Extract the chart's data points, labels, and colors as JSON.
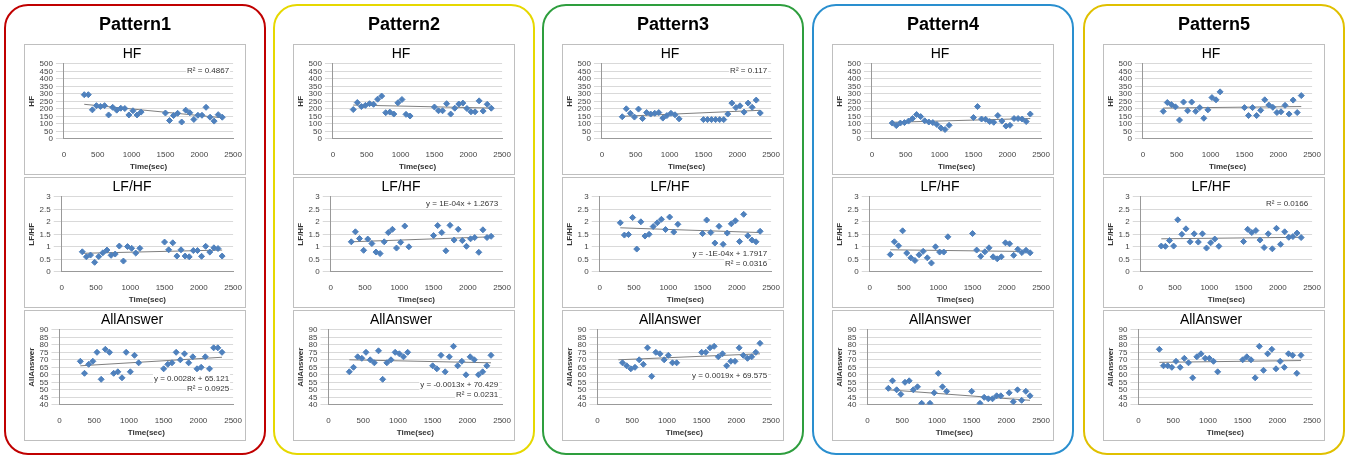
{
  "chart_data": [
    {
      "type": "scatter",
      "title": "Pattern1",
      "subtitle": "HF",
      "xlabel": "Time(sec)",
      "ylabel": "HF",
      "xlim": [
        0,
        2500
      ],
      "xticks": [
        0,
        500,
        1000,
        1500,
        2000,
        2500
      ],
      "ylim": [
        0,
        500
      ],
      "yticks": [
        0,
        50,
        100,
        150,
        200,
        250,
        300,
        350,
        400,
        450,
        500
      ],
      "grid": "y",
      "legend": false,
      "x": [
        300,
        360,
        420,
        480,
        540,
        600,
        660,
        720,
        780,
        840,
        900,
        960,
        1020,
        1080,
        1140,
        1500,
        1560,
        1620,
        1680,
        1740,
        1800,
        1860,
        1920,
        1980,
        2040,
        2100,
        2160,
        2220,
        2280,
        2340
      ],
      "annotations": [
        "R² = 0.4867"
      ],
      "series": [
        {
          "color": "#4f81bd",
          "marker": "diamond",
          "values": [
            294,
            294,
            193,
            221,
            216,
            221,
            159,
            210,
            191,
            204,
            202,
            159,
            187,
            159,
            178,
            172,
            122,
            155,
            170,
            112,
            191,
            174,
            129,
            157,
            157,
            210,
            144,
            118,
            161,
            144
          ]
        },
        {
          "type": "line",
          "color": "#7f7f7f",
          "x": [
            300,
            2340
          ],
          "values": [
            230,
            140
          ]
        }
      ]
    },
    {
      "type": "scatter",
      "title": "LF/HF",
      "xlabel": "Time(sec)",
      "ylabel": "LF/HF",
      "xlim": [
        0,
        2500
      ],
      "xticks": [
        0,
        500,
        1000,
        1500,
        2000,
        2500
      ],
      "ylim": [
        0,
        3
      ],
      "yticks": [
        0,
        0.5,
        1,
        1.5,
        2,
        2.5,
        3
      ],
      "grid": "y",
      "legend": false,
      "x": [
        300,
        360,
        420,
        480,
        540,
        600,
        660,
        720,
        780,
        840,
        900,
        960,
        1020,
        1080,
        1140,
        1500,
        1560,
        1620,
        1680,
        1740,
        1800,
        1860,
        1920,
        1980,
        2040,
        2100,
        2160,
        2220,
        2280,
        2340
      ],
      "series": [
        {
          "color": "#4f81bd",
          "marker": "diamond",
          "values": [
            0.8,
            0.6,
            0.67,
            0.38,
            0.61,
            0.76,
            0.87,
            0.66,
            0.71,
            1.03,
            0.43,
            1.01,
            0.94,
            0.75,
            0.94,
            1.19,
            0.88,
            1.16,
            0.63,
            0.88,
            0.63,
            0.6,
            0.85,
            0.85,
            0.62,
            1.02,
            0.79,
            0.96,
            0.93,
            0.63
          ]
        },
        {
          "type": "line",
          "color": "#7f7f7f",
          "x": [
            300,
            2340
          ],
          "values": [
            0.74,
            0.87
          ]
        }
      ]
    },
    {
      "type": "scatter",
      "title": "AllAnswer",
      "xlabel": "Time(sec)",
      "ylabel": "AllAnswer",
      "xlim": [
        0,
        2500
      ],
      "xticks": [
        0,
        500,
        1000,
        1500,
        2000,
        2500
      ],
      "ylim": [
        40,
        90
      ],
      "yticks": [
        40,
        45,
        50,
        55,
        60,
        65,
        70,
        75,
        80,
        85,
        90
      ],
      "grid": "y",
      "legend": false,
      "x": [
        300,
        360,
        420,
        480,
        540,
        600,
        660,
        720,
        780,
        840,
        900,
        960,
        1020,
        1080,
        1140,
        1500,
        1560,
        1620,
        1680,
        1740,
        1800,
        1860,
        1920,
        1980,
        2040,
        2100,
        2160,
        2220,
        2280,
        2340
      ],
      "annotations": [
        "y = 0.0028x + 65.121",
        "R² = 0.0925"
      ],
      "series": [
        {
          "color": "#4f81bd",
          "marker": "diamond",
          "values": [
            69,
            61,
            67,
            69,
            75,
            57,
            77,
            75,
            61,
            62,
            58,
            75,
            62,
            73,
            68,
            64,
            67,
            68,
            75,
            70,
            74,
            68,
            72,
            64,
            65,
            72,
            64,
            78,
            78,
            75
          ]
        },
        {
          "type": "line",
          "color": "#7f7f7f",
          "x": [
            300,
            2340
          ],
          "values": [
            66,
            71.7
          ]
        }
      ]
    },
    {
      "type": "scatter",
      "title": "Pattern2",
      "subtitle": "HF",
      "xlabel": "Time(sec)",
      "ylabel": "HF",
      "xlim": [
        0,
        2500
      ],
      "xticks": [
        0,
        500,
        1000,
        1500,
        2000,
        2500
      ],
      "ylim": [
        0,
        500
      ],
      "yticks": [
        0,
        50,
        100,
        150,
        200,
        250,
        300,
        350,
        400,
        450,
        500
      ],
      "grid": "y",
      "legend": false,
      "x": [
        300,
        360,
        420,
        480,
        540,
        600,
        660,
        720,
        780,
        840,
        900,
        960,
        1020,
        1080,
        1140,
        1500,
        1560,
        1620,
        1680,
        1740,
        1800,
        1860,
        1920,
        1980,
        2040,
        2100,
        2160,
        2220,
        2280,
        2340
      ],
      "series": [
        {
          "color": "#4f81bd",
          "marker": "diamond",
          "values": [
            195,
            242,
            215,
            223,
            234,
            230,
            264,
            285,
            174,
            178,
            165,
            240,
            262,
            163,
            152,
            212,
            187,
            187,
            234,
            165,
            204,
            232,
            238,
            202,
            180,
            180,
            253,
            185,
            230,
            204
          ]
        },
        {
          "type": "line",
          "color": "#7f7f7f",
          "x": [
            300,
            2340
          ],
          "values": [
            225,
            205
          ]
        }
      ]
    },
    {
      "type": "scatter",
      "title": "LF/HF",
      "xlabel": "Time(sec)",
      "ylabel": "LF/HF",
      "xlim": [
        0,
        2500
      ],
      "xticks": [
        0,
        500,
        1000,
        1500,
        2000,
        2500
      ],
      "ylim": [
        0,
        3
      ],
      "yticks": [
        0,
        0.5,
        1,
        1.5,
        2,
        2.5,
        3
      ],
      "grid": "y",
      "legend": false,
      "x": [
        300,
        360,
        420,
        480,
        540,
        600,
        660,
        720,
        780,
        840,
        900,
        960,
        1020,
        1080,
        1140,
        1500,
        1560,
        1620,
        1680,
        1740,
        1800,
        1860,
        1920,
        1980,
        2040,
        2100,
        2160,
        2220,
        2280,
        2340
      ],
      "annotations": [
        "y = 1E-04x + 1.2673"
      ],
      "series": [
        {
          "color": "#4f81bd",
          "marker": "diamond",
          "values": [
            1.2,
            1.6,
            1.33,
            0.86,
            1.31,
            1.13,
            0.79,
            0.73,
            1.2,
            1.57,
            1.7,
            0.95,
            1.18,
            1.83,
            1.0,
            1.45,
            1.85,
            1.57,
            0.84,
            1.86,
            1.27,
            1.7,
            1.25,
            1.02,
            1.32,
            1.37,
            0.78,
            1.68,
            1.37,
            1.42
          ]
        },
        {
          "type": "line",
          "color": "#7f7f7f",
          "x": [
            300,
            2340
          ],
          "values": [
            1.2,
            1.4
          ]
        }
      ]
    },
    {
      "type": "scatter",
      "title": "AllAnswer",
      "xlabel": "Time(sec)",
      "ylabel": "AllAnswer",
      "xlim": [
        0,
        2500
      ],
      "xticks": [
        0,
        500,
        1000,
        1500,
        2000,
        2500
      ],
      "ylim": [
        40,
        90
      ],
      "yticks": [
        40,
        45,
        50,
        55,
        60,
        65,
        70,
        75,
        80,
        85,
        90
      ],
      "grid": "y",
      "legend": false,
      "x": [
        300,
        360,
        420,
        480,
        540,
        600,
        660,
        720,
        780,
        840,
        900,
        960,
        1020,
        1080,
        1140,
        1500,
        1560,
        1620,
        1680,
        1740,
        1800,
        1860,
        1920,
        1980,
        2040,
        2100,
        2160,
        2220,
        2280,
        2340
      ],
      "annotations": [
        "y = -0.0013x + 70.429",
        "R² = 0.0231"
      ],
      "series": [
        {
          "color": "#4f81bd",
          "marker": "diamond",
          "values": [
            62,
            65,
            72,
            71,
            75,
            70,
            68,
            76,
            57,
            68,
            70,
            75,
            74,
            72,
            75,
            66,
            64,
            73,
            62,
            72,
            79,
            66,
            69,
            60,
            72,
            70,
            60,
            62,
            66,
            73
          ]
        },
        {
          "type": "line",
          "color": "#7f7f7f",
          "x": [
            300,
            2340
          ],
          "values": [
            70,
            68
          ]
        }
      ]
    },
    {
      "type": "scatter",
      "title": "Pattern3",
      "subtitle": "HF",
      "xlabel": "Time(sec)",
      "ylabel": "HF",
      "xlim": [
        0,
        2500
      ],
      "xticks": [
        0,
        500,
        1000,
        1500,
        2000,
        2500
      ],
      "ylim": [
        0,
        500
      ],
      "yticks": [
        0,
        50,
        100,
        150,
        200,
        250,
        300,
        350,
        400,
        450,
        500
      ],
      "grid": "y",
      "legend": false,
      "x": [
        300,
        360,
        420,
        480,
        540,
        600,
        660,
        720,
        780,
        840,
        900,
        960,
        1020,
        1080,
        1140,
        1500,
        1560,
        1620,
        1680,
        1740,
        1800,
        1860,
        1920,
        1980,
        2040,
        2100,
        2160,
        2220,
        2280,
        2340
      ],
      "annotations": [
        "R² = 0.117"
      ],
      "series": [
        {
          "color": "#4f81bd",
          "marker": "diamond",
          "values": [
            147,
            200,
            170,
            145,
            198,
            135,
            175,
            165,
            170,
            175,
            138,
            155,
            170,
            160,
            133,
            128,
            128,
            128,
            128,
            128,
            128,
            165,
            238,
            208,
            220,
            178,
            238,
            210,
            258,
            172
          ]
        },
        {
          "type": "line",
          "color": "#7f7f7f",
          "x": [
            300,
            2340
          ],
          "values": [
            150,
            190
          ]
        }
      ]
    },
    {
      "type": "scatter",
      "title": "LF/HF",
      "xlabel": "Time(sec)",
      "ylabel": "LF/HF",
      "xlim": [
        0,
        2500
      ],
      "xticks": [
        0,
        500,
        1000,
        1500,
        2000,
        2500
      ],
      "ylim": [
        0,
        3
      ],
      "yticks": [
        0,
        0.5,
        1,
        1.5,
        2,
        2.5,
        3
      ],
      "grid": "y",
      "legend": false,
      "x": [
        300,
        360,
        420,
        480,
        540,
        600,
        660,
        720,
        780,
        840,
        900,
        960,
        1020,
        1080,
        1140,
        1500,
        1560,
        1620,
        1680,
        1740,
        1800,
        1860,
        1920,
        1980,
        2040,
        2100,
        2160,
        2220,
        2280,
        2340
      ],
      "annotations": [
        "y = -1E-04x + 1.7917",
        "R² = 0.0316"
      ],
      "series": [
        {
          "color": "#4f81bd",
          "marker": "diamond",
          "values": [
            1.96,
            1.47,
            1.49,
            2.17,
            0.91,
            2.0,
            1.43,
            1.5,
            1.81,
            1.96,
            2.1,
            1.69,
            2.19,
            1.59,
            1.9,
            1.53,
            2.07,
            1.57,
            1.15,
            1.82,
            1.1,
            1.55,
            1.92,
            2.04,
            1.21,
            2.3,
            1.44,
            1.27,
            1.2,
            1.62
          ]
        },
        {
          "type": "line",
          "color": "#7f7f7f",
          "x": [
            300,
            2340
          ],
          "values": [
            1.76,
            1.57
          ]
        }
      ]
    },
    {
      "type": "scatter",
      "title": "AllAnswer",
      "xlabel": "Time(sec)",
      "ylabel": "AllAnswer",
      "xlim": [
        0,
        2500
      ],
      "xticks": [
        0,
        500,
        1000,
        1500,
        2000,
        2500
      ],
      "ylim": [
        40,
        90
      ],
      "yticks": [
        40,
        45,
        50,
        55,
        60,
        65,
        70,
        75,
        80,
        85,
        90
      ],
      "grid": "y",
      "legend": false,
      "annotations": [
        "y = 0.0019x + 69.575"
      ],
      "series": [
        {
          "color": "#4f81bd",
          "marker": "diamond",
          "x": [
            360,
            420,
            480,
            540,
            600,
            660,
            720,
            780,
            840,
            900,
            960,
            1020,
            1080,
            1140,
            1500,
            1560,
            1620,
            1680,
            1740,
            1800,
            1860,
            1920,
            1980,
            2040,
            2100,
            2160,
            2220,
            2280,
            2340
          ],
          "values": [
            68,
            66,
            64,
            65,
            70,
            67,
            78,
            59,
            75,
            74,
            70,
            73,
            68,
            68,
            75,
            75,
            78,
            79,
            72,
            74,
            66,
            69,
            69,
            78,
            73,
            71,
            72,
            75,
            81
          ]
        },
        {
          "type": "line",
          "color": "#7f7f7f",
          "x": [
            300,
            2340
          ],
          "values": [
            70,
            74
          ]
        }
      ]
    },
    {
      "type": "scatter",
      "title": "Pattern4",
      "subtitle": "HF",
      "xlabel": "Time(sec)",
      "ylabel": "HF",
      "xlim": [
        0,
        2500
      ],
      "xticks": [
        0,
        500,
        1000,
        1500,
        2000,
        2500
      ],
      "ylim": [
        0,
        500
      ],
      "yticks": [
        0,
        50,
        100,
        150,
        200,
        250,
        300,
        350,
        400,
        450,
        500
      ],
      "grid": "y",
      "legend": false,
      "x": [
        300,
        360,
        420,
        480,
        540,
        600,
        660,
        720,
        780,
        840,
        900,
        960,
        1020,
        1080,
        1140,
        1500,
        1560,
        1620,
        1680,
        1740,
        1800,
        1860,
        1920,
        1980,
        2040,
        2100,
        2160,
        2220,
        2280,
        2340
      ],
      "series": [
        {
          "color": "#4f81bd",
          "marker": "diamond",
          "values": [
            105,
            88,
            105,
            108,
            118,
            135,
            162,
            148,
            120,
            112,
            108,
            95,
            72,
            62,
            90,
            142,
            215,
            132,
            130,
            115,
            110,
            155,
            118,
            85,
            90,
            135,
            135,
            132,
            115,
            165
          ]
        },
        {
          "type": "line",
          "color": "#7f7f7f",
          "x": [
            300,
            2340
          ],
          "values": [
            110,
            135
          ]
        }
      ]
    },
    {
      "type": "scatter",
      "title": "LF/HF",
      "xlabel": "Time(sec)",
      "ylabel": "LF/HF",
      "xlim": [
        0,
        2500
      ],
      "xticks": [
        0,
        500,
        1000,
        1500,
        2000,
        2500
      ],
      "ylim": [
        0,
        3
      ],
      "yticks": [
        0,
        0.5,
        1,
        1.5,
        2,
        2.5,
        3
      ],
      "grid": "y",
      "legend": false,
      "x": [
        300,
        360,
        420,
        480,
        540,
        600,
        660,
        720,
        780,
        840,
        900,
        960,
        1020,
        1080,
        1140,
        1500,
        1560,
        1620,
        1680,
        1740,
        1800,
        1860,
        1920,
        1980,
        2040,
        2100,
        2160,
        2220,
        2280,
        2340
      ],
      "series": [
        {
          "color": "#4f81bd",
          "marker": "diamond",
          "values": [
            0.69,
            1.2,
            1.04,
            1.64,
            0.75,
            0.56,
            0.45,
            0.68,
            0.82,
            0.56,
            0.35,
            1.0,
            0.79,
            0.79,
            1.4,
            1.53,
            0.87,
            0.62,
            0.8,
            0.96,
            0.6,
            0.52,
            0.6,
            1.16,
            1.12,
            0.66,
            0.9,
            0.77,
            0.86,
            0.76
          ]
        },
        {
          "type": "line",
          "color": "#7f7f7f",
          "x": [
            300,
            2340
          ],
          "values": [
            0.88,
            0.81
          ]
        }
      ]
    },
    {
      "type": "scatter",
      "title": "AllAnswer",
      "xlabel": "Time(sec)",
      "ylabel": "AllAnswer",
      "xlim": [
        0,
        2500
      ],
      "xticks": [
        0,
        500,
        1000,
        1500,
        2000,
        2500
      ],
      "ylim": [
        40,
        90
      ],
      "yticks": [
        40,
        45,
        50,
        55,
        60,
        65,
        70,
        75,
        80,
        85,
        90
      ],
      "grid": "y",
      "legend": false,
      "series": [
        {
          "color": "#4f81bd",
          "marker": "diamond",
          "x": [
            300,
            360,
            420,
            480,
            540,
            600,
            660,
            720,
            780,
            900,
            960,
            1020,
            1080,
            1140,
            1500,
            1620,
            1680,
            1740,
            1800,
            1860,
            1920,
            2040,
            2100,
            2160,
            2220,
            2280,
            2340
          ],
          "values": [
            51,
            56,
            50,
            47,
            55,
            56,
            50,
            52,
            41,
            41,
            48,
            61,
            52,
            49,
            49,
            41,
            45,
            44,
            44,
            46,
            46,
            48,
            42,
            50,
            43,
            49,
            46
          ]
        },
        {
          "type": "line",
          "color": "#7f7f7f",
          "x": [
            300,
            2340
          ],
          "values": [
            50,
            43
          ]
        }
      ]
    },
    {
      "type": "scatter",
      "title": "Pattern5",
      "subtitle": "HF",
      "xlabel": "Time(sec)",
      "ylabel": "HF",
      "xlim": [
        0,
        2500
      ],
      "xticks": [
        0,
        500,
        1000,
        1500,
        2000,
        2500
      ],
      "ylim": [
        0,
        500
      ],
      "yticks": [
        0,
        50,
        100,
        150,
        200,
        250,
        300,
        350,
        400,
        450,
        500
      ],
      "grid": "y",
      "legend": false,
      "x": [
        300,
        360,
        420,
        480,
        540,
        600,
        660,
        720,
        780,
        840,
        900,
        960,
        1020,
        1080,
        1140,
        1500,
        1560,
        1620,
        1680,
        1740,
        1800,
        1860,
        1920,
        1980,
        2040,
        2100,
        2160,
        2220,
        2280,
        2340
      ],
      "series": [
        {
          "color": "#4f81bd",
          "marker": "diamond",
          "values": [
            183,
            242,
            228,
            213,
            125,
            245,
            187,
            245,
            183,
            208,
            137,
            193,
            275,
            260,
            313,
            208,
            155,
            208,
            155,
            190,
            260,
            225,
            210,
            175,
            180,
            223,
            165,
            258,
            175,
            288
          ]
        },
        {
          "type": "line",
          "color": "#7f7f7f",
          "x": [
            300,
            2340
          ],
          "values": [
            205,
            215
          ]
        }
      ]
    },
    {
      "type": "scatter",
      "title": "LF/HF",
      "xlabel": "Time(sec)",
      "ylabel": "LF/HF",
      "xlim": [
        0,
        2500
      ],
      "xticks": [
        0,
        500,
        1000,
        1500,
        2000,
        2500
      ],
      "ylim": [
        0,
        3
      ],
      "yticks": [
        0,
        0.5,
        1,
        1.5,
        2,
        2.5,
        3
      ],
      "grid": "y",
      "legend": false,
      "x": [
        300,
        360,
        420,
        480,
        540,
        600,
        660,
        720,
        780,
        840,
        900,
        960,
        1020,
        1080,
        1140,
        1500,
        1560,
        1620,
        1680,
        1740,
        1800,
        1860,
        1920,
        1980,
        2040,
        2100,
        2160,
        2220,
        2280,
        2340
      ],
      "annotations": [
        "R² = 0.0166"
      ],
      "series": [
        {
          "color": "#4f81bd",
          "marker": "diamond",
          "values": [
            1.03,
            1.02,
            1.25,
            1.03,
            2.08,
            1.5,
            1.72,
            1.2,
            1.52,
            1.19,
            1.52,
            0.95,
            1.16,
            1.31,
            1.02,
            1.21,
            1.7,
            1.57,
            1.65,
            1.27,
            0.97,
            1.52,
            0.92,
            1.74,
            1.1,
            1.6,
            1.38,
            1.41,
            1.55,
            1.37
          ]
        },
        {
          "type": "line",
          "color": "#7f7f7f",
          "x": [
            300,
            2340
          ],
          "values": [
            1.32,
            1.38
          ]
        }
      ]
    },
    {
      "type": "scatter",
      "title": "AllAnswer",
      "xlabel": "Time(sec)",
      "ylabel": "AllAnswer",
      "xlim": [
        0,
        2500
      ],
      "xticks": [
        0,
        500,
        1000,
        1500,
        2000,
        2500
      ],
      "ylim": [
        40,
        90
      ],
      "yticks": [
        40,
        45,
        50,
        55,
        60,
        65,
        70,
        75,
        80,
        85,
        90
      ],
      "grid": "y",
      "legend": false,
      "x": [
        300,
        360,
        420,
        480,
        540,
        600,
        660,
        720,
        780,
        840,
        900,
        960,
        1020,
        1080,
        1140,
        1500,
        1560,
        1620,
        1680,
        1740,
        1800,
        1860,
        1920,
        1980,
        2040,
        2100,
        2160,
        2220,
        2280,
        2340
      ],
      "series": [
        {
          "color": "#4f81bd",
          "marker": "diamond",
          "values": [
            77,
            66,
            66,
            65,
            69,
            65,
            71,
            68,
            58,
            72,
            74,
            71,
            71,
            69,
            62,
            70,
            72,
            70,
            58,
            79,
            63,
            74,
            77,
            64,
            69,
            65,
            74,
            73,
            61,
            73
          ]
        },
        {
          "type": "line",
          "color": "#7f7f7f",
          "x": [
            300,
            2340
          ],
          "values": [
            68.3,
            69.5
          ]
        }
      ]
    }
  ]
}
